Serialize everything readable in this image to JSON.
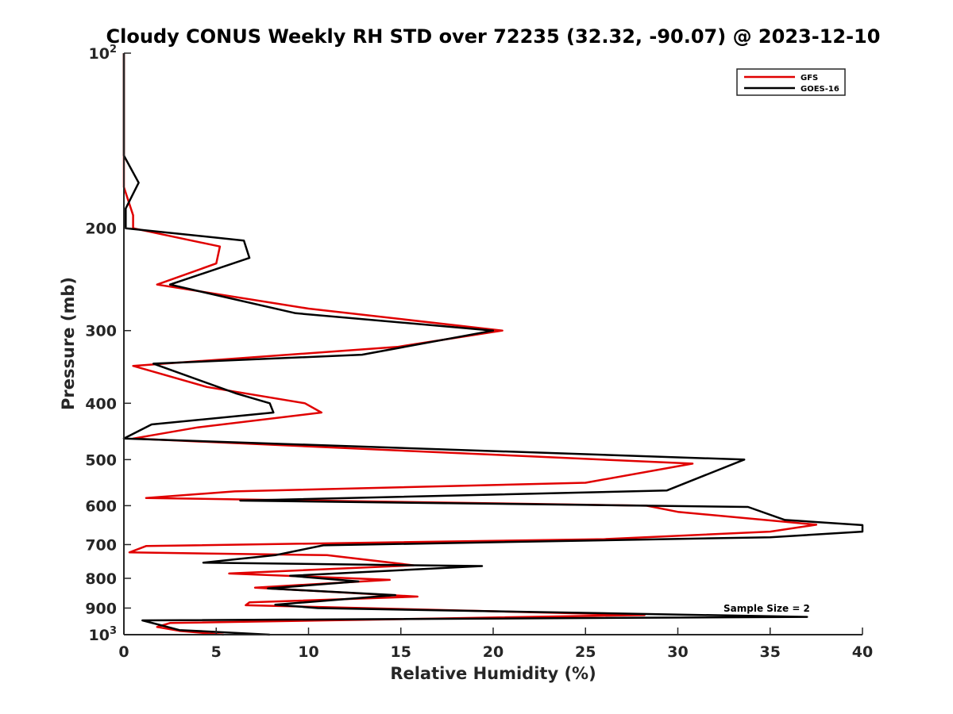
{
  "chart_data": {
    "type": "line",
    "title": "Cloudy CONUS Weekly RH STD over 72235 (32.32, -90.07) @ 2023-12-10",
    "xlabel": "Relative Humidity (%)",
    "ylabel": "Pressure (mb)",
    "xlim": [
      0,
      40
    ],
    "ylim": [
      100,
      1000
    ],
    "yscale": "log",
    "y_reversed": true,
    "grid": false,
    "x_ticks": [
      0,
      5,
      10,
      15,
      20,
      25,
      30,
      35,
      40
    ],
    "x_tick_labels": [
      "0",
      "5",
      "10",
      "15",
      "20",
      "25",
      "30",
      "35",
      "40"
    ],
    "y_ticks": [
      100,
      200,
      300,
      400,
      500,
      600,
      700,
      800,
      900,
      1000
    ],
    "y_tick_labels": [
      {
        "base": "10",
        "sup": "2"
      },
      {
        "base": "200",
        "sup": ""
      },
      {
        "base": "300",
        "sup": ""
      },
      {
        "base": "400",
        "sup": ""
      },
      {
        "base": "500",
        "sup": ""
      },
      {
        "base": "600",
        "sup": ""
      },
      {
        "base": "700",
        "sup": ""
      },
      {
        "base": "800",
        "sup": ""
      },
      {
        "base": "900",
        "sup": ""
      },
      {
        "base": "10",
        "sup": "3"
      }
    ],
    "legend_position": "top-right",
    "annotation": "Sample Size = 2",
    "series": [
      {
        "name": "GFS",
        "color": "#e00000",
        "points": [
          [
            0,
            100
          ],
          [
            0,
            150
          ],
          [
            0,
            170
          ],
          [
            0.5,
            190
          ],
          [
            0.5,
            200
          ],
          [
            5.2,
            215
          ],
          [
            5.0,
            230
          ],
          [
            1.8,
            250
          ],
          [
            10,
            275
          ],
          [
            20.5,
            300
          ],
          [
            14.8,
            320
          ],
          [
            0.5,
            345
          ],
          [
            4.5,
            375
          ],
          [
            9.8,
            400
          ],
          [
            10.7,
            415
          ],
          [
            4,
            440
          ],
          [
            0.5,
            460
          ],
          [
            30.8,
            508
          ],
          [
            25.0,
            548
          ],
          [
            6.0,
            567
          ],
          [
            1.2,
            582
          ],
          [
            28.3,
            600
          ],
          [
            30.0,
            615
          ],
          [
            37.5,
            647
          ],
          [
            35.0,
            665
          ],
          [
            26.0,
            685
          ],
          [
            1.2,
            704
          ],
          [
            0.3,
            722
          ],
          [
            11.0,
            730
          ],
          [
            15.7,
            760
          ],
          [
            5.7,
            785
          ],
          [
            14.4,
            805
          ],
          [
            7.1,
            830
          ],
          [
            15.9,
            860
          ],
          [
            6.8,
            880
          ],
          [
            6.6,
            890
          ],
          [
            28.2,
            925
          ],
          [
            2.5,
            955
          ],
          [
            1.8,
            970
          ],
          [
            3.0,
            985
          ],
          [
            5.4,
            1000
          ]
        ]
      },
      {
        "name": "GOES-16",
        "color": "#000000",
        "points": [
          [
            0,
            100
          ],
          [
            0,
            150
          ],
          [
            0.8,
            167
          ],
          [
            0.1,
            185
          ],
          [
            0.1,
            200
          ],
          [
            6.5,
            210
          ],
          [
            6.8,
            225
          ],
          [
            2.5,
            250
          ],
          [
            9.3,
            280
          ],
          [
            20,
            300
          ],
          [
            12.9,
            330
          ],
          [
            1.6,
            342
          ],
          [
            6.1,
            385
          ],
          [
            7.9,
            400
          ],
          [
            8.1,
            415
          ],
          [
            1.5,
            435
          ],
          [
            0,
            460
          ],
          [
            33.6,
            500
          ],
          [
            29.4,
            565
          ],
          [
            6.3,
            588
          ],
          [
            33.8,
            603
          ],
          [
            35.8,
            635
          ],
          [
            40.0,
            648
          ],
          [
            40.0,
            665
          ],
          [
            35.0,
            680
          ],
          [
            10.8,
            702
          ],
          [
            8.2,
            730
          ],
          [
            4.3,
            752
          ],
          [
            19.4,
            762
          ],
          [
            9.0,
            792
          ],
          [
            12.7,
            810
          ],
          [
            7.8,
            833
          ],
          [
            14.7,
            855
          ],
          [
            8.2,
            888
          ],
          [
            10.5,
            900
          ],
          [
            37.0,
            932
          ],
          [
            1.0,
            945
          ],
          [
            3.0,
            982
          ],
          [
            7.9,
            1000
          ]
        ]
      }
    ]
  }
}
